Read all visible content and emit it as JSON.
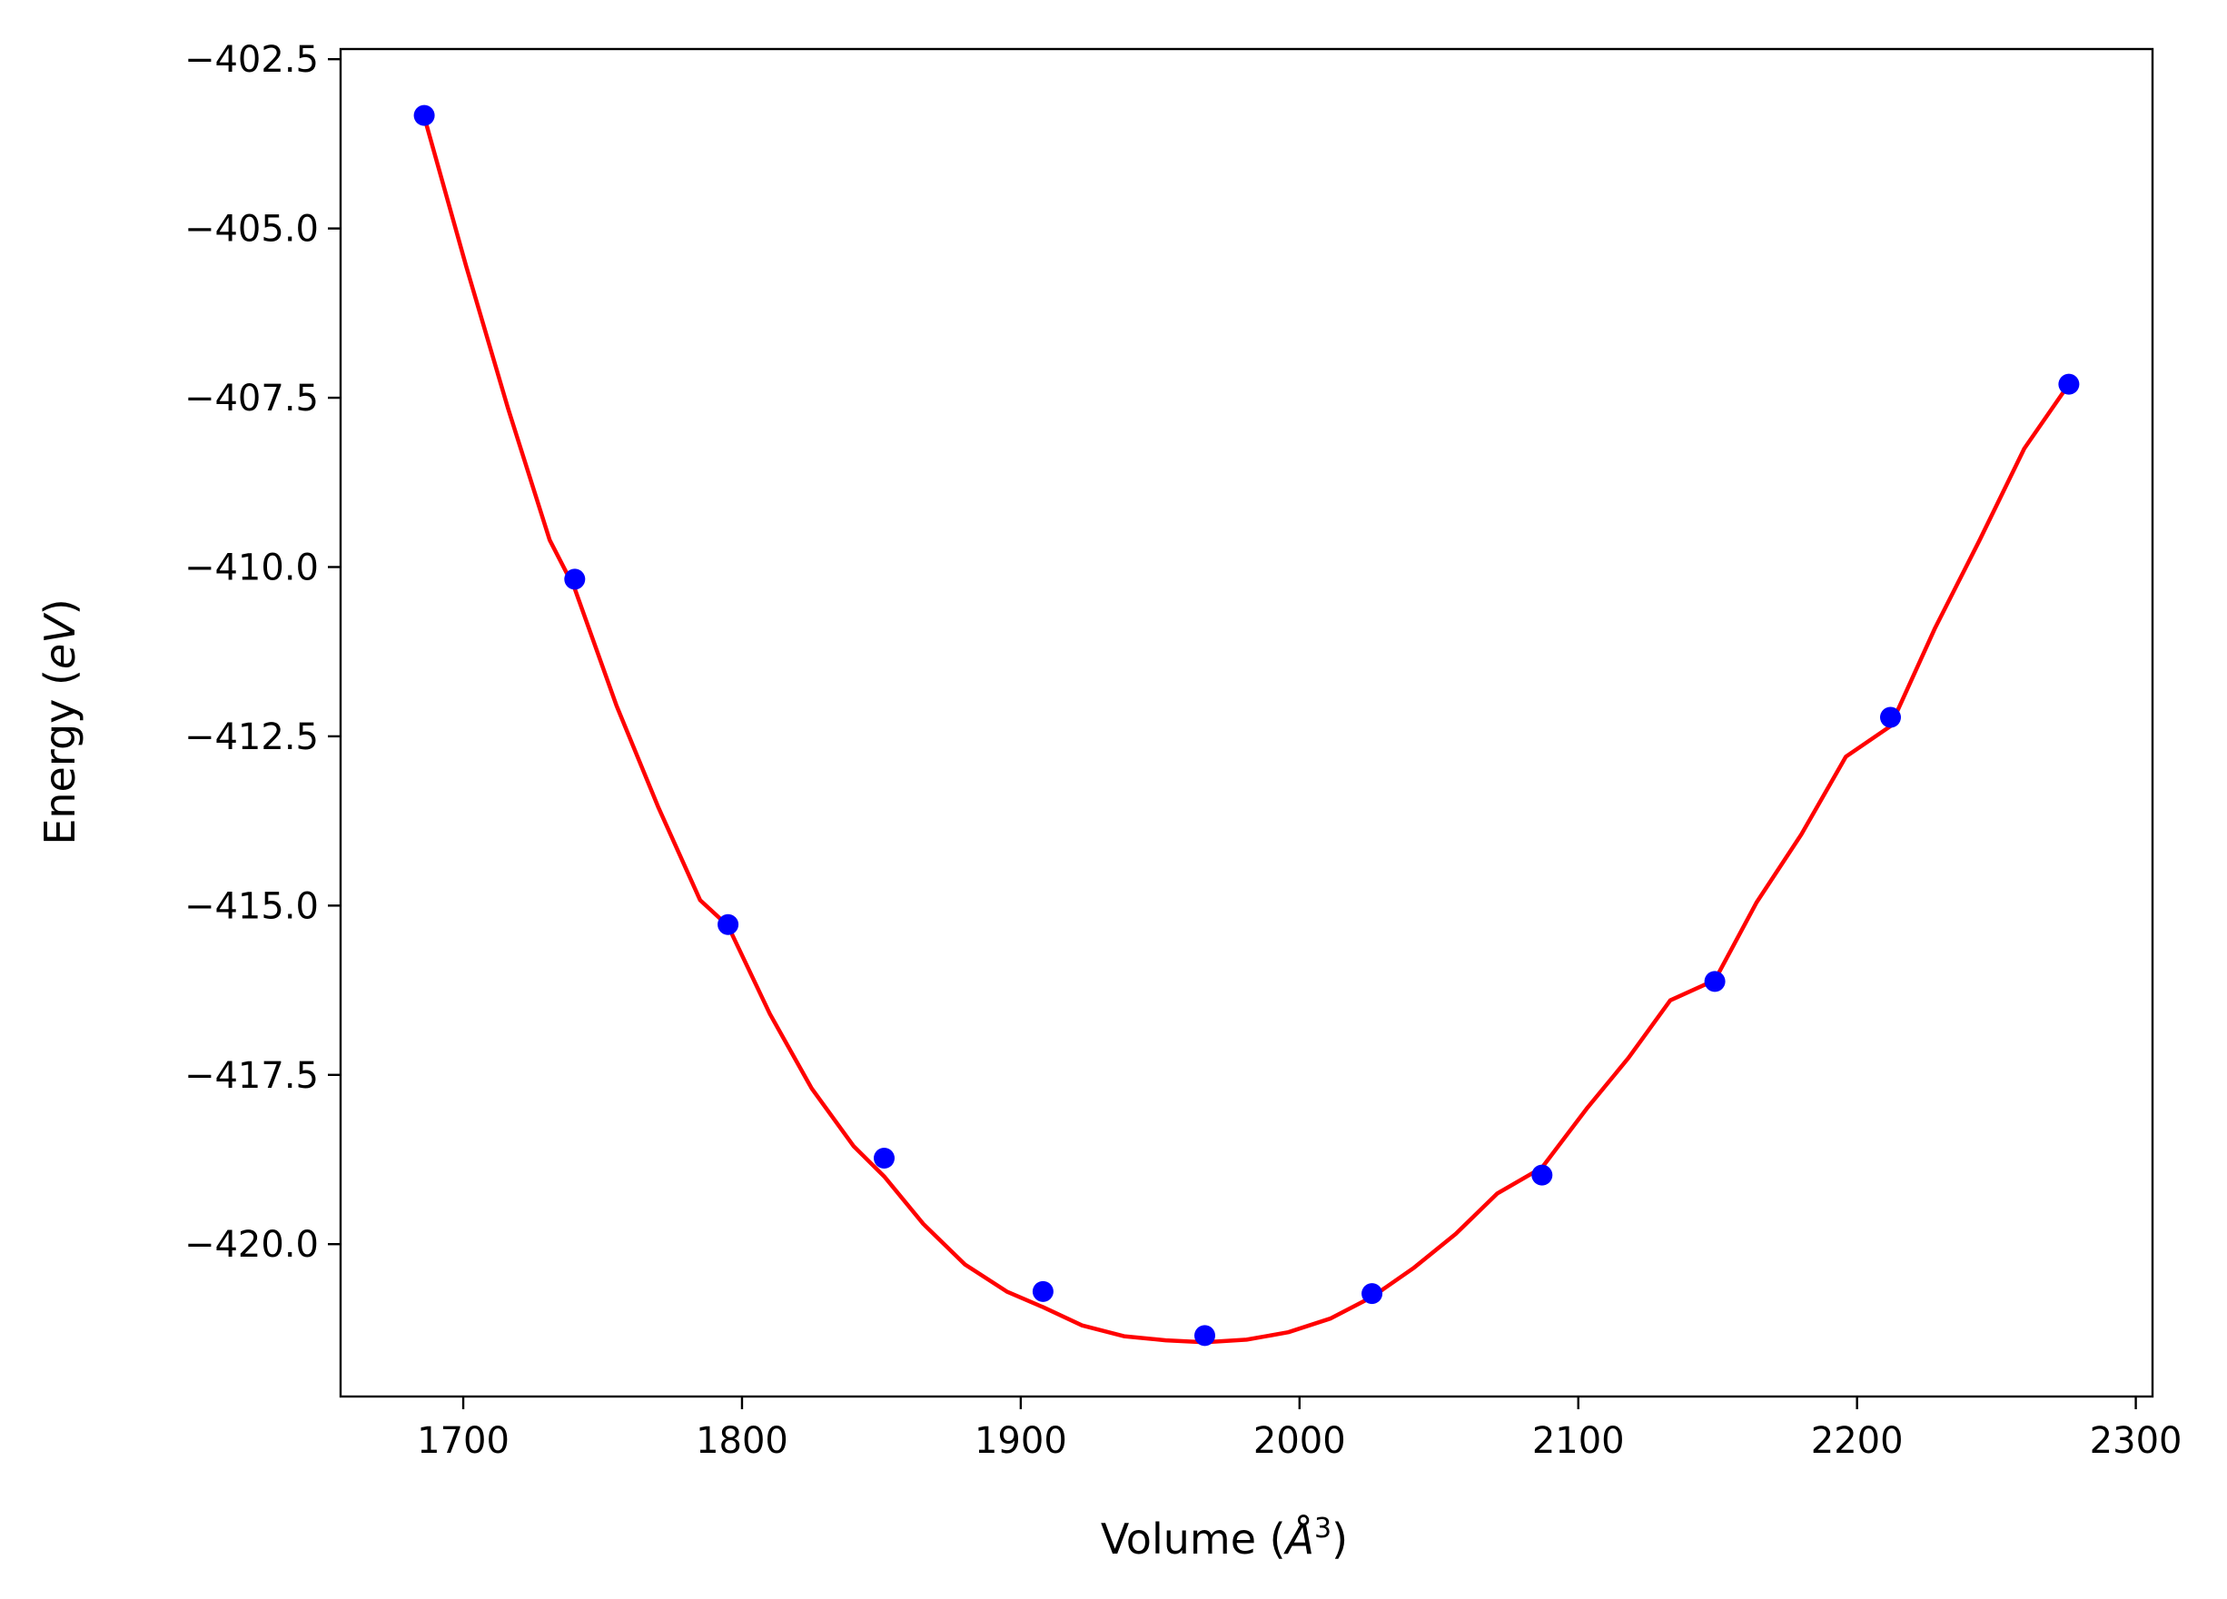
{
  "chart_data": {
    "type": "line",
    "xlabel_main": "Volume (",
    "xlabel_symbol": "Å",
    "xlabel_exp": "3",
    "xlabel_close": ")",
    "ylabel_main": "Energy (",
    "ylabel_unit": "eV",
    "ylabel_close": ")",
    "xlim": [
      1656,
      2306
    ],
    "ylim": [
      -422.25,
      -402.35
    ],
    "xticks": [
      1700,
      1800,
      1900,
      2000,
      2100,
      2200,
      2300
    ],
    "xtick_labels": [
      "1700",
      "1800",
      "1900",
      "2000",
      "2100",
      "2200",
      "2300"
    ],
    "yticks": [
      -402.5,
      -405.0,
      -407.5,
      -410.0,
      -412.5,
      -415.0,
      -417.5,
      -420.0
    ],
    "ytick_labels": [
      "−402.5",
      "−405.0",
      "−407.5",
      "−410.0",
      "−412.5",
      "−415.0",
      "−417.5",
      "−420.0"
    ],
    "series": [
      {
        "mode": "line",
        "color": "#ff0000",
        "x": [
          1686,
          1701,
          1716,
          1731,
          1740,
          1755,
          1770,
          1785,
          1795,
          1810,
          1825,
          1840,
          1851,
          1865,
          1880,
          1895,
          1908,
          1922,
          1937,
          1952,
          1966,
          1981,
          1996,
          2011,
          2026,
          2041,
          2056,
          2071,
          2087,
          2103,
          2118,
          2133,
          2149,
          2164,
          2180,
          2196,
          2212,
          2228,
          2244,
          2260,
          2276
        ],
        "y": [
          -403.35,
          -405.55,
          -407.65,
          -409.6,
          -410.32,
          -412.05,
          -413.55,
          -414.92,
          -415.3,
          -416.6,
          -417.7,
          -418.55,
          -419.0,
          -419.7,
          -420.3,
          -420.7,
          -420.93,
          -421.2,
          -421.36,
          -421.42,
          -421.45,
          -421.41,
          -421.3,
          -421.1,
          -420.78,
          -420.35,
          -419.85,
          -419.25,
          -418.87,
          -418.0,
          -417.25,
          -416.4,
          -416.1,
          -414.95,
          -413.95,
          -412.8,
          -412.35,
          -410.9,
          -409.6,
          -408.25,
          -407.3
        ]
      },
      {
        "mode": "markers",
        "color": "#0000ff",
        "x": [
          1686,
          1740,
          1795,
          1851,
          1908,
          1966,
          2026,
          2087,
          2149,
          2212,
          2276
        ],
        "y": [
          -403.33,
          -410.18,
          -415.28,
          -418.73,
          -420.7,
          -421.35,
          -420.73,
          -418.98,
          -416.12,
          -412.22,
          -407.3
        ]
      }
    ],
    "grid": false,
    "legend": "none"
  }
}
